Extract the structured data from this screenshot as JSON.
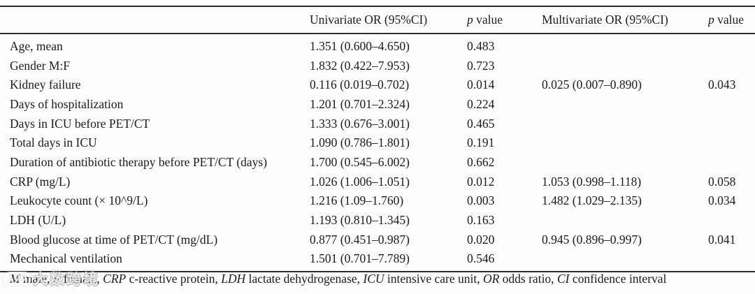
{
  "table": {
    "headers": {
      "col_variable": "",
      "col_univariate": "Univariate OR (95%CI)",
      "col_p1_symbol": "p",
      "col_p1_word": " value",
      "col_multivariate": "Multivariate OR (95%CI)",
      "col_p2_symbol": "p",
      "col_p2_word": " value"
    },
    "rows": [
      {
        "label": "Age, mean",
        "uni_or": "1.351 (0.600–4.650)",
        "uni_p": "0.483",
        "multi_or": "",
        "multi_p": ""
      },
      {
        "label": "Gender M:F",
        "uni_or": "1.832 (0.422–7.953)",
        "uni_p": "0.723",
        "multi_or": "",
        "multi_p": ""
      },
      {
        "label": "Kidney failure",
        "uni_or": "0.116 (0.019–0.702)",
        "uni_p": "0.014",
        "multi_or": "0.025 (0.007–0.890)",
        "multi_p": "0.043"
      },
      {
        "label": "Days of hospitalization",
        "uni_or": "1.201 (0.701–2.324)",
        "uni_p": "0.224",
        "multi_or": "",
        "multi_p": ""
      },
      {
        "label": "Days in ICU before PET/CT",
        "uni_or": "1.333 (0.676–3.001)",
        "uni_p": "0.465",
        "multi_or": "",
        "multi_p": ""
      },
      {
        "label": "Total days in ICU",
        "uni_or": "1.090 (0.786–1.801)",
        "uni_p": "0.191",
        "multi_or": "",
        "multi_p": ""
      },
      {
        "label": "Duration of antibiotic therapy before PET/CT (days)",
        "uni_or": "1.700 (0.545–6.002)",
        "uni_p": "0.662",
        "multi_or": "",
        "multi_p": ""
      },
      {
        "label": "CRP (mg/L)",
        "uni_or": "1.026 (1.006–1.051)",
        "uni_p": "0.012",
        "multi_or": "1.053 (0.998–1.118)",
        "multi_p": "0.058"
      },
      {
        "label": "Leukocyte count (× 10^9/L)",
        "uni_or": "1.216 (1.09–1.760)",
        "uni_p": "0.003",
        "multi_or": "1.482 (1.029–2.135)",
        "multi_p": "0.034"
      },
      {
        "label": "LDH (U/L)",
        "uni_or": "1.193 (0.810–1.345)",
        "uni_p": "0.163",
        "multi_or": "",
        "multi_p": ""
      },
      {
        "label": "Blood glucose at time of PET/CT (mg/dL)",
        "uni_or": "0.877 (0.451–0.987)",
        "uni_p": "0.020",
        "multi_or": "0.945 (0.896–0.997)",
        "multi_p": "0.041"
      },
      {
        "label": "Mechanical ventilation",
        "uni_or": "1.501 (0.701–7.789)",
        "uni_p": "0.546",
        "multi_or": "",
        "multi_p": ""
      }
    ]
  },
  "footnote": {
    "segments": [
      {
        "text": "M",
        "italic": true
      },
      {
        "text": " male, ",
        "italic": false
      },
      {
        "text": "F",
        "italic": true
      },
      {
        "text": " female, ",
        "italic": false
      },
      {
        "text": "CRP",
        "italic": true
      },
      {
        "text": " c-reactive protein, ",
        "italic": false
      },
      {
        "text": "LDH",
        "italic": true
      },
      {
        "text": " lactate dehydrogenase, ",
        "italic": false
      },
      {
        "text": "ICU",
        "italic": true
      },
      {
        "text": " intensive care unit, ",
        "italic": false
      },
      {
        "text": "OR",
        "italic": true
      },
      {
        "text": " odds ratio, ",
        "italic": false
      },
      {
        "text": "CI",
        "italic": true
      },
      {
        "text": " confidence interval",
        "italic": false
      }
    ]
  },
  "watermark": {
    "logo": "100",
    "text": "大数跨境"
  },
  "colors": {
    "text": "#1b1b1b",
    "rule": "#2b2b2b",
    "background": "#fdfdfd"
  }
}
